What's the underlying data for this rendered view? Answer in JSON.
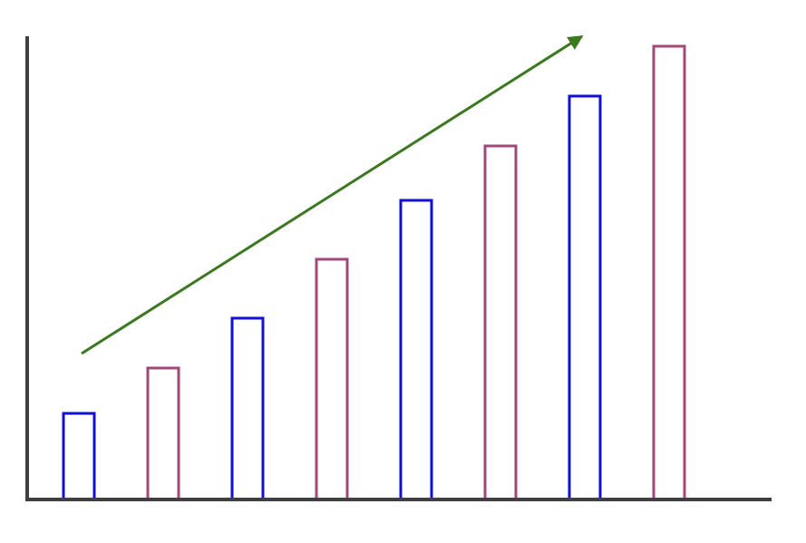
{
  "chart_data": {
    "type": "bar",
    "title": "",
    "xlabel": "",
    "ylabel": "",
    "categories": [
      "",
      "",
      "",
      "",
      "",
      "",
      "",
      ""
    ],
    "values": [
      19,
      29,
      40,
      53,
      66,
      78,
      89,
      100
    ],
    "ylim": [
      0,
      102
    ],
    "grid": false,
    "legend": "none",
    "bar_fill": "none",
    "bar_colors": [
      "#1010d8",
      "#a04878",
      "#1010d8",
      "#a04878",
      "#1010d8",
      "#a04878",
      "#1010d8",
      "#a04878"
    ],
    "axis_color": "#404040",
    "trend_arrow": {
      "color": "#3a7a1e",
      "direction": "up-right",
      "from_value": 30,
      "to_value": 100
    }
  }
}
